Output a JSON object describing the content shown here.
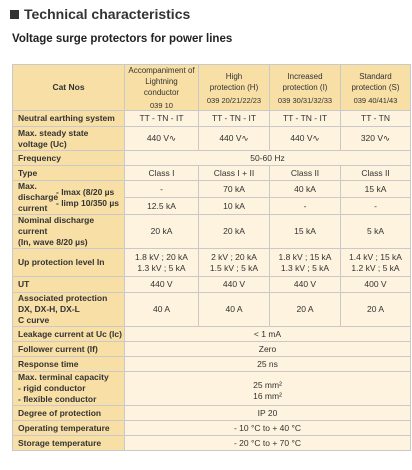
{
  "header": {
    "title": "Technical characteristics",
    "subtitle": "Voltage surge protectors for power lines"
  },
  "table": {
    "catnos_label": "Cat Nos",
    "columns": [
      {
        "name_line1": "Accompaniment of",
        "name_line2": "Lightning conductor",
        "code": "039 10"
      },
      {
        "name_line1": "High",
        "name_line2": "protection (H)",
        "code": "039 20/21/22/23"
      },
      {
        "name_line1": "Increased",
        "name_line2": "protection (I)",
        "code": "039 30/31/32/33"
      },
      {
        "name_line1": "Standard",
        "name_line2": "protection (S)",
        "code": "039 40/41/43"
      }
    ],
    "rows": {
      "neutral": {
        "label": "Neutral earthing system",
        "values": [
          "TT - TN - IT",
          "TT - TN - IT",
          "TT - TN - IT",
          "TT - TN"
        ]
      },
      "maxvoltage": {
        "label_line1": "Max. steady state",
        "label_line2": "voltage (Uc)",
        "values": [
          "440 V∿",
          "440 V∿",
          "440 V∿",
          "320 V∿"
        ]
      },
      "frequency": {
        "label": "Frequency",
        "value": "50-60 Hz"
      },
      "type": {
        "label": "Type",
        "values": [
          "Class I",
          "Class I + II",
          "Class II",
          "Class II"
        ]
      },
      "maxdischarge": {
        "label_line1": "Max.",
        "label_line2": "discharge",
        "label_line3": "current",
        "imax_label": "- Imax (8/20 µs",
        "limp_label": "- limp 10/350 µs",
        "imax_values": [
          "-",
          "70 kA",
          "40 kA",
          "15 kA"
        ],
        "limp_values": [
          "12.5 kA",
          "10 kA",
          "-",
          "-"
        ]
      },
      "nominal": {
        "label_line1": "Nominal discharge",
        "label_line2": "current",
        "label_line3": "(In, wave 8/20 µs)",
        "values": [
          "20 kA",
          "20 kA",
          "15 kA",
          "5 kA"
        ]
      },
      "uplevel": {
        "label": "Up protection level In",
        "values_line1": [
          "1.8 kV ; 20 kA",
          "2 kV ; 20 kA",
          "1.8 kV ; 15 kA",
          "1.4 kV ; 15 kA"
        ],
        "values_line2": [
          "1.3 kV ; 5 kA",
          "1.5 kV ; 5 kA",
          "1.3 kV ; 5 kA",
          "1.2 kV ; 5 kA"
        ]
      },
      "ut": {
        "label": "UT",
        "values": [
          "440 V",
          "440 V",
          "440 V",
          "400 V"
        ]
      },
      "assoc": {
        "label_line1": "Associated protection",
        "label_line2": "DX, DX-H, DX-L",
        "label_line3": "C curve",
        "values": [
          "40 A",
          "40 A",
          "20 A",
          "20 A"
        ]
      },
      "leakage": {
        "label": "Leakage current at Uc (Ic)",
        "value": "< 1 mA"
      },
      "follower": {
        "label": "Follower current (If)",
        "value": "Zero"
      },
      "response": {
        "label": "Response time",
        "value": "25 ns"
      },
      "terminal": {
        "label_line1": "Max. terminal capacity",
        "label_line2": "- rigid conductor",
        "label_line3": "- flexible conductor",
        "value_line1": "25 mm²",
        "value_line2": "16 mm²"
      },
      "degree": {
        "label": "Degree of protection",
        "value": "IP 20"
      },
      "optemp": {
        "label": "Operating temperature",
        "value": "- 10 °C to + 40 °C"
      },
      "sttemp": {
        "label": "Storage temperature",
        "value": "- 20 °C to + 70 °C"
      }
    }
  }
}
